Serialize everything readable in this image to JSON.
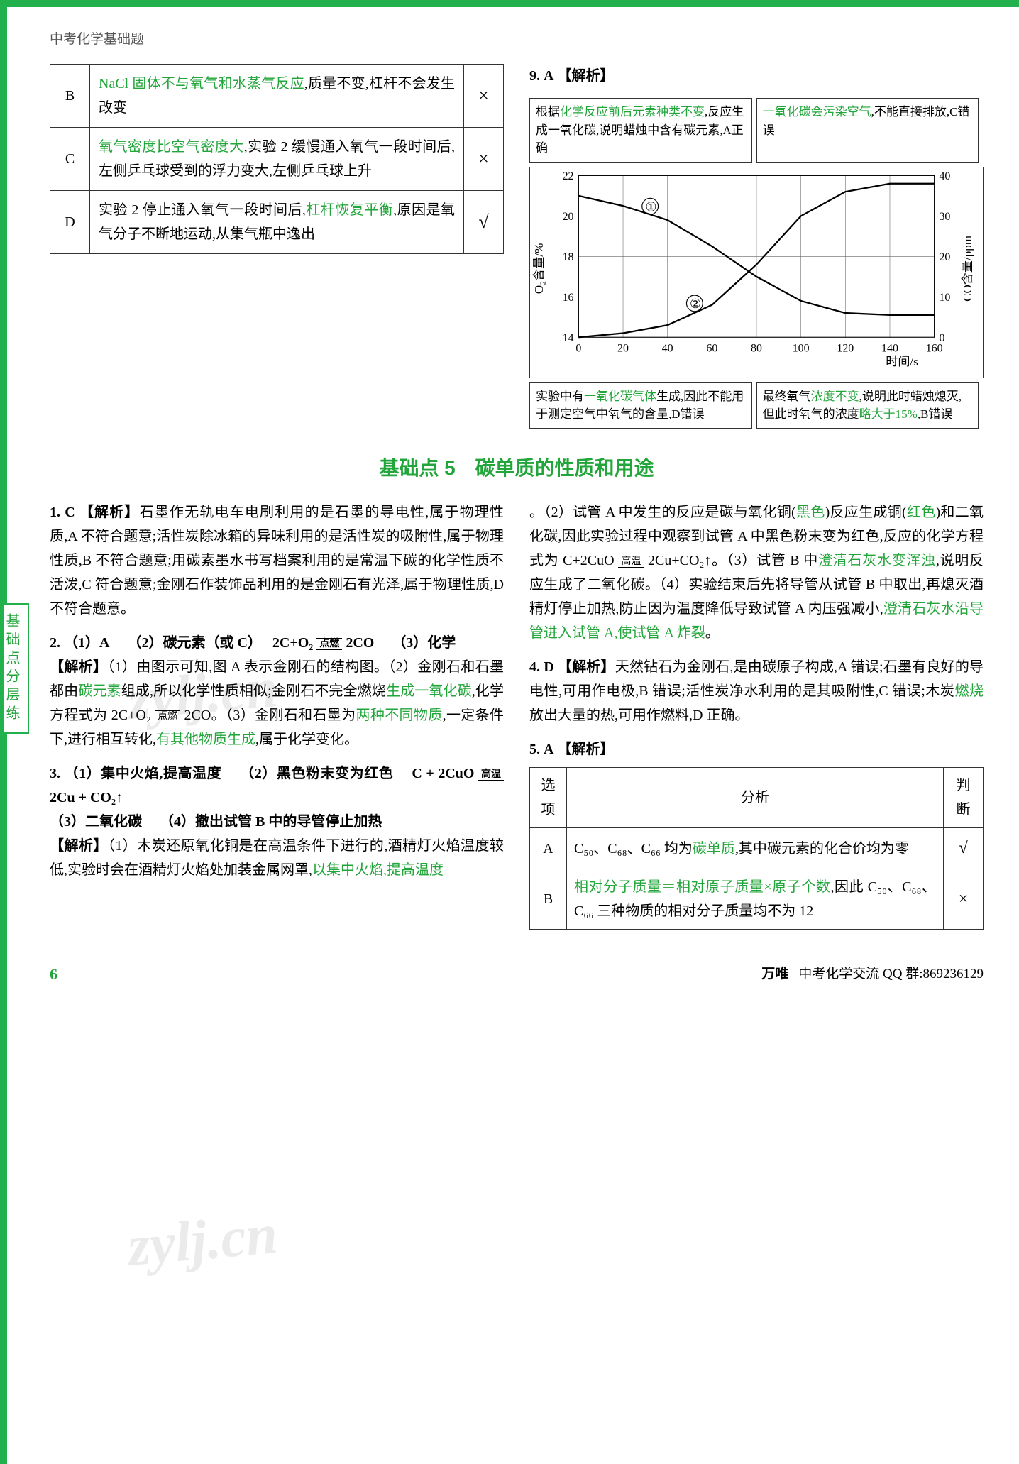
{
  "header": "中考化学基础题",
  "sidebar_tab": "基础点分层练",
  "opt_table": {
    "rows": [
      {
        "letter": "B",
        "text_pre": "",
        "hl": "NaCl 固体不与氧气和水蒸气反应",
        "text_post": ",质量不变,杠杆不会发生改变",
        "mark": "×"
      },
      {
        "letter": "C",
        "text_pre": "",
        "hl": "氧气密度比空气密度大",
        "text_post": ",实验 2 缓慢通入氧气一段时间后,左侧乒乓球受到的浮力变大,左侧乒乓球上升",
        "mark": "×"
      },
      {
        "letter": "D",
        "text_pre": "实验 2 停止通入氧气一段时间后,",
        "hl": "杠杆恢复平衡",
        "text_post": ",原因是氧气分子不断地运动,从集气瓶中逸出",
        "mark": "√"
      }
    ]
  },
  "q9": {
    "num": "9.",
    "ans": "A",
    "tag": "【解析】"
  },
  "annot": {
    "tl1": "根据",
    "tl1_hl": "化学反应前后元素种类不变",
    "tl2": ",反应生成一氧化碳,说明蜡烛中含有碳元素,A正确",
    "tr_hl": "一氧化碳会污染空气",
    "tr2": ",不能直接排放,C错误",
    "bl1": "实验中有",
    "bl1_hl": "一氧化碳气体",
    "bl2": "生成,因此不能用于测定空气中氧气的含量,D错误",
    "br1": "最终氧气",
    "br1_hl": "浓度不变",
    "br2": ",说明此时蜡烛熄灭,但此时氧气的浓度",
    "br2_hl": "略大于15%",
    "br3": ",B错误"
  },
  "chart": {
    "y1_label": "O₂含量/%",
    "y1_ticks": [
      "14",
      "16",
      "18",
      "20",
      "22"
    ],
    "y2_label": "CO含量/ppm",
    "y2_ticks": [
      "0",
      "10",
      "20",
      "30",
      "40"
    ],
    "x_label": "时间/s",
    "x_ticks": [
      "0",
      "20",
      "40",
      "60",
      "80",
      "100",
      "120",
      "140",
      "160"
    ],
    "o2_series": [
      [
        0,
        21
      ],
      [
        20,
        20.5
      ],
      [
        40,
        19.8
      ],
      [
        60,
        18.5
      ],
      [
        80,
        17
      ],
      [
        100,
        15.8
      ],
      [
        120,
        15.2
      ],
      [
        140,
        15.1
      ],
      [
        160,
        15.1
      ]
    ],
    "co_series": [
      [
        0,
        0
      ],
      [
        20,
        1
      ],
      [
        40,
        3
      ],
      [
        60,
        8
      ],
      [
        80,
        18
      ],
      [
        100,
        30
      ],
      [
        120,
        36
      ],
      [
        140,
        38
      ],
      [
        160,
        38
      ]
    ],
    "circle1": "①",
    "circle2": "②",
    "colors": {
      "grid": "#666",
      "line": "#000",
      "bg": "#ffffff"
    }
  },
  "section_title": "基础点 5　碳单质的性质和用途",
  "q1": {
    "num": "1.",
    "ans": "C",
    "tag": "【解析】",
    "body": "石墨作无轨电车电刷利用的是石墨的导电性,属于物理性质,A 不符合题意;活性炭除冰箱的异味利用的是活性炭的吸附性,属于物理性质,B 不符合题意;用碳素墨水书写档案利用的是常温下碳的化学性质不活泼,C 符合题意;金刚石作装饰品利用的是金刚石有光泽,属于物理性质,D 不符合题意。"
  },
  "q2": {
    "num": "2.",
    "line1_a": "（1）A",
    "line1_b": "（2）碳元素（或 C）",
    "eq_lhs": "2C+O₂",
    "eq_cond": "点燃",
    "eq_rhs": "2CO",
    "line1_d": "（3）化学",
    "tag": "【解析】",
    "p1": "（1）由图示可知,图 A 表示金刚石的结构图。（2）金刚石和石墨都由",
    "hl1": "碳元素",
    "p2": "组成,所以化学性质相似;金刚石不完全燃烧",
    "hl2": "生成一氧化碳",
    "p3": ",化学方程式为 2C+O₂",
    "eq2_cond": "点燃",
    "p3b": " 2CO。（3）金刚石和石墨为",
    "hl3": "两种不同物质",
    "p4": ",一定条件下,进行相互转化,",
    "hl4": "有其他物质生成",
    "p5": ",属于化学变化。"
  },
  "q3": {
    "num": "3.",
    "a1": "（1）集中火焰,提高温度",
    "a2": "（2）黑色粉末变为红色",
    "eq_lhs": "C + 2CuO",
    "eq_cond": "高温",
    "eq_rhs": "2Cu + CO₂↑",
    "a3": "（3）二氧化碳",
    "a4": "（4）撤出试管 B 中的导管停止加热",
    "tag": "【解析】",
    "p1": "（1）木炭还原氧化铜是在高温条件下进行的,酒精灯火焰温度较低,实验时会在酒精灯火焰处加装金属网罩,",
    "hl1": "以集中火焰,提高温度",
    "p2": "。（2）试管 A 中发生的反应是碳与氧化铜(",
    "hl2": "黑色",
    "p3": ")反应生成铜(",
    "hl3": "红色",
    "p4": ")和二氧化碳,因此实验过程中观察到试管 A 中黑色粉末变为红色,反应的化学方程式为 C+2CuO",
    "eq2_cond": "高温",
    "p4b": " 2Cu+CO₂↑。（3）试管 B 中",
    "hl4": "澄清石灰水变浑浊",
    "p5": ",说明反应生成了二氧化碳。（4）实验结束后先将导管从试管 B 中取出,再熄灭酒精灯停止加热,防止因为温度降低导致试管 A 内压强减小,",
    "hl5": "澄清石灰水沿导管进入试管 A,使试管 A 炸裂",
    "p6": "。"
  },
  "q4": {
    "num": "4.",
    "ans": "D",
    "tag": "【解析】",
    "p1": "天然钻石为金刚石,是由碳原子构成,A 错误;石墨有良好的导电性,可用作电极,B 错误;活性炭净水利用的是其吸附性,C 错误;木炭",
    "hl1": "燃烧",
    "p2": "放出大量的热,可用作燃料,D 正确。"
  },
  "q5": {
    "num": "5.",
    "ans": "A",
    "tag": "【解析】",
    "th1": "选项",
    "th2": "分析",
    "th3": "判断",
    "rowA_l": "A",
    "rowA_t1": "C₅₀、C₆₈、C₆₆ 均为",
    "rowA_hl": "碳单质",
    "rowA_t2": ",其中碳元素的化合价均为零",
    "rowA_m": "√",
    "rowB_l": "B",
    "rowB_hl": "相对分子质量＝相对原子质量×原子个数",
    "rowB_t": ",因此 C₅₀、C₆₈、C₆₆ 三种物质的相对分子质量均不为 12",
    "rowB_m": "×"
  },
  "footer": {
    "page": "6",
    "brand": "万唯",
    "text": "中考化学交流 QQ 群:869236129"
  },
  "watermarks": [
    "zylj.cn",
    "zylj.cn"
  ]
}
